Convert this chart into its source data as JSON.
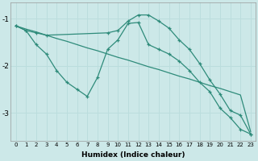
{
  "xlabel": "Humidex (Indice chaleur)",
  "bg_color": "#cce8e8",
  "line_color": "#2e8b7a",
  "grid_color": "#bbdddd",
  "xlim": [
    -0.5,
    23.5
  ],
  "ylim": [
    -3.6,
    -0.65
  ],
  "yticks": [
    -3,
    -2,
    -1
  ],
  "xticks": [
    0,
    1,
    2,
    3,
    4,
    5,
    6,
    7,
    8,
    9,
    10,
    11,
    12,
    13,
    14,
    15,
    16,
    17,
    18,
    19,
    20,
    21,
    22,
    23
  ],
  "curve_straight_x": [
    0,
    1,
    2,
    3,
    4,
    5,
    6,
    7,
    8,
    9,
    10,
    11,
    12,
    13,
    14,
    15,
    16,
    17,
    18,
    19,
    20,
    21,
    22,
    23
  ],
  "curve_straight_y": [
    -1.15,
    -1.22,
    -1.28,
    -1.35,
    -1.42,
    -1.48,
    -1.55,
    -1.62,
    -1.68,
    -1.75,
    -1.82,
    -1.88,
    -1.95,
    -2.02,
    -2.08,
    -2.15,
    -2.22,
    -2.28,
    -2.35,
    -2.42,
    -2.48,
    -2.55,
    -2.62,
    -3.4
  ],
  "curve_wiggly_x": [
    0,
    1,
    2,
    3,
    4,
    5,
    6,
    7,
    8,
    9,
    10,
    11,
    12,
    13,
    14,
    15,
    16,
    17,
    18,
    19,
    20,
    21,
    22,
    23
  ],
  "curve_wiggly_y": [
    -1.15,
    -1.25,
    -1.55,
    -1.75,
    -2.1,
    -2.35,
    -2.5,
    -2.65,
    -2.25,
    -1.65,
    -1.45,
    -1.1,
    -1.08,
    -1.55,
    -1.65,
    -1.75,
    -1.9,
    -2.1,
    -2.35,
    -2.55,
    -2.9,
    -3.1,
    -3.35,
    -3.45
  ],
  "curve_peak_x": [
    0,
    1,
    2,
    3,
    9,
    10,
    11,
    12,
    13,
    14,
    15,
    16,
    17,
    18,
    19,
    20,
    21,
    22,
    23
  ],
  "curve_peak_y": [
    -1.15,
    -1.25,
    -1.3,
    -1.35,
    -1.3,
    -1.25,
    -1.05,
    -0.92,
    -0.92,
    -1.05,
    -1.2,
    -1.45,
    -1.65,
    -1.95,
    -2.3,
    -2.6,
    -2.95,
    -3.05,
    -3.45
  ]
}
